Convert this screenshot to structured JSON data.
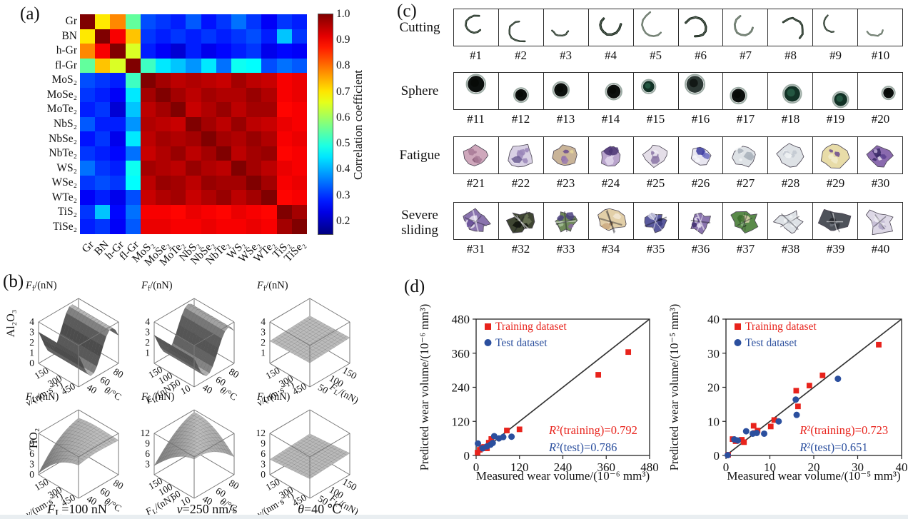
{
  "panels": {
    "a": "(a)",
    "b": "(b)",
    "c": "(c)",
    "d": "(d)"
  },
  "colors": {
    "training": "#e8231c",
    "test": "#2b4f9e",
    "identity_line": "#333333",
    "box": "#222222",
    "surface_edge": "#777777"
  },
  "chart_data": [
    {
      "type": "heatmap",
      "panel": "a",
      "labels": [
        "Gr",
        "BN",
        "h-Gr",
        "fl-Gr",
        "MoS₂",
        "MoSe₂",
        "MoTe₂",
        "NbS₂",
        "NbSe₂",
        "NbTe₂",
        "WS₂",
        "WSe₂",
        "WTe₂",
        "TiS₂",
        "TiSe₂"
      ],
      "matrix": [
        [
          1.0,
          0.7,
          0.78,
          0.55,
          0.32,
          0.3,
          0.28,
          0.33,
          0.27,
          0.3,
          0.35,
          0.3,
          0.25,
          0.3,
          0.28
        ],
        [
          0.7,
          1.0,
          0.9,
          0.73,
          0.3,
          0.28,
          0.3,
          0.28,
          0.3,
          0.28,
          0.3,
          0.32,
          0.28,
          0.42,
          0.3
        ],
        [
          0.78,
          0.9,
          1.0,
          0.65,
          0.28,
          0.25,
          0.22,
          0.28,
          0.24,
          0.26,
          0.28,
          0.3,
          0.24,
          0.26,
          0.25
        ],
        [
          0.55,
          0.73,
          0.65,
          1.0,
          0.52,
          0.45,
          0.42,
          0.38,
          0.45,
          0.35,
          0.48,
          0.47,
          0.32,
          0.35,
          0.33
        ],
        [
          0.32,
          0.3,
          0.28,
          0.52,
          1.0,
          0.97,
          0.95,
          0.96,
          0.95,
          0.94,
          0.97,
          0.95,
          0.94,
          0.9,
          0.91
        ],
        [
          0.3,
          0.28,
          0.25,
          0.45,
          0.97,
          1.0,
          0.97,
          0.95,
          0.97,
          0.96,
          0.96,
          0.98,
          0.96,
          0.9,
          0.91
        ],
        [
          0.28,
          0.3,
          0.22,
          0.42,
          0.95,
          0.97,
          1.0,
          0.94,
          0.96,
          0.98,
          0.95,
          0.97,
          0.97,
          0.89,
          0.9
        ],
        [
          0.33,
          0.28,
          0.28,
          0.38,
          0.96,
          0.95,
          0.94,
          1.0,
          0.97,
          0.95,
          0.98,
          0.95,
          0.94,
          0.91,
          0.9
        ],
        [
          0.27,
          0.3,
          0.24,
          0.45,
          0.95,
          0.97,
          0.96,
          0.97,
          1.0,
          0.97,
          0.96,
          0.98,
          0.96,
          0.9,
          0.91
        ],
        [
          0.3,
          0.28,
          0.26,
          0.35,
          0.94,
          0.96,
          0.98,
          0.95,
          0.97,
          1.0,
          0.95,
          0.97,
          0.98,
          0.89,
          0.9
        ],
        [
          0.35,
          0.3,
          0.28,
          0.48,
          0.97,
          0.96,
          0.95,
          0.98,
          0.96,
          0.95,
          1.0,
          0.97,
          0.95,
          0.91,
          0.9
        ],
        [
          0.3,
          0.32,
          0.3,
          0.47,
          0.95,
          0.98,
          0.97,
          0.95,
          0.98,
          0.97,
          0.97,
          1.0,
          0.97,
          0.9,
          0.91
        ],
        [
          0.25,
          0.28,
          0.24,
          0.32,
          0.94,
          0.96,
          0.97,
          0.94,
          0.96,
          0.98,
          0.95,
          0.97,
          1.0,
          0.89,
          0.9
        ],
        [
          0.3,
          0.42,
          0.26,
          0.35,
          0.9,
          0.9,
          0.89,
          0.91,
          0.9,
          0.89,
          0.91,
          0.9,
          0.89,
          1.0,
          0.97
        ],
        [
          0.28,
          0.3,
          0.25,
          0.33,
          0.91,
          0.91,
          0.9,
          0.9,
          0.91,
          0.9,
          0.9,
          0.91,
          0.9,
          0.97,
          1.0
        ]
      ],
      "colorbar": {
        "label": "Correlation coefficient",
        "ticks": [
          "1.0",
          "0.9",
          "0.8",
          "0.7",
          "0.6",
          "0.5",
          "0.4",
          "0.3",
          "0.2"
        ],
        "vmin": 0.15,
        "vmax": 1.0
      }
    },
    {
      "type": "surface-grid",
      "panel": "b",
      "row_labels": [
        "Al₂O₃",
        "TiO₂"
      ],
      "captions": [
        "F_L=100 nN",
        "v=250 nm/s",
        "θ=40 ℃"
      ],
      "plots": [
        {
          "zlabel": "F_f/(nN)",
          "zmax": 4,
          "zticks": [
            "4",
            "3",
            "2",
            "1",
            "0"
          ],
          "left": {
            "label": "v/(nm·s⁻¹)",
            "ticks": [
              "150",
              "300",
              "450"
            ]
          },
          "right": {
            "label": "θ/°C",
            "ticks": [
              "40",
              "60",
              "80"
            ]
          },
          "shape": "wave1"
        },
        {
          "zlabel": "F_f/(nN)",
          "zmax": 4,
          "zticks": [
            "4",
            "3",
            "2",
            "1"
          ],
          "left": {
            "label": "F_L/(nN)",
            "ticks": [
              "150",
              "100",
              "50",
              "10"
            ]
          },
          "right": {
            "label": "θ/°C",
            "ticks": [
              "40",
              "60",
              "80"
            ]
          },
          "shape": "wave2"
        },
        {
          "zlabel": "F_f/(nN)",
          "zmax": 4,
          "zticks": [
            "4",
            "3",
            "2",
            "1"
          ],
          "left": {
            "label": "v/(nm·s⁻¹)",
            "ticks": [
              "150",
              "300",
              "450"
            ]
          },
          "right": {
            "label": "F_L/(nN)",
            "ticks": [
              "50",
              "100",
              "150"
            ]
          },
          "shape": "plane1"
        },
        {
          "zlabel": "F_L/(nN)",
          "zmax": 12,
          "zticks": [
            "9",
            "6",
            "3",
            "0"
          ],
          "left": {
            "label": "v/(nm·s⁻¹)",
            "ticks": [
              "150",
              "300",
              "450"
            ]
          },
          "right": {
            "label": "θ/°C",
            "ticks": [
              "40",
              "60",
              "80"
            ]
          },
          "shape": "dome1"
        },
        {
          "zlabel": "F_L/(nN)",
          "zmax": 12,
          "zticks": [
            "12",
            "9",
            "6",
            "3"
          ],
          "left": {
            "label": "F_L/(nN)",
            "ticks": [
              "150",
              "100",
              "50",
              "10"
            ]
          },
          "right": {
            "label": "θ/°C",
            "ticks": [
              "40",
              "60",
              "80"
            ]
          },
          "shape": "dome2"
        },
        {
          "zlabel": "F_L/(nN)",
          "zmax": 12,
          "zticks": [
            "12",
            "9",
            "6",
            "3",
            "0"
          ],
          "left": {
            "label": "v/(nm·s⁻¹)",
            "ticks": [
              "150",
              "300",
              "450"
            ]
          },
          "right": {
            "label": "F_L/(nN)",
            "ticks": [
              "50",
              "100",
              "150"
            ]
          },
          "shape": "plane2"
        }
      ]
    },
    {
      "type": "image-grid",
      "panel": "c",
      "rows": [
        {
          "label": "Cutting",
          "kind": "cutting",
          "ids": [
            "#1",
            "#2",
            "#3",
            "#4",
            "#5",
            "#6",
            "#7",
            "#8",
            "#9",
            "#10"
          ],
          "tones": [
            "dark",
            "dark",
            "dark",
            "dark",
            "gray",
            "dark",
            "gray",
            "dark",
            "dark",
            "gray"
          ]
        },
        {
          "label": "Sphere",
          "kind": "sphere",
          "ids": [
            "#11",
            "#12",
            "#13",
            "#14",
            "#15",
            "#16",
            "#17",
            "#18",
            "#19",
            "#20"
          ],
          "tones": [
            "black",
            "black",
            "black",
            "black",
            "green",
            "gray",
            "black",
            "green",
            "green",
            "black"
          ]
        },
        {
          "label": "Fatigue",
          "kind": "fatigue",
          "ids": [
            "#21",
            "#22",
            "#23",
            "#24",
            "#25",
            "#26",
            "#27",
            "#28",
            "#29",
            "#30"
          ],
          "tones": [
            "mauve",
            "lavender",
            "purple-yellow",
            "purple",
            "pale-purple",
            "blue-violet",
            "pale-gray",
            "pale-gray",
            "yellow-purple",
            "violet"
          ]
        },
        {
          "label": "Severe sliding",
          "kind": "severe",
          "ids": [
            "#31",
            "#32",
            "#33",
            "#34",
            "#35",
            "#36",
            "#37",
            "#38",
            "#39",
            "#40"
          ],
          "tones": [
            "purple-white",
            "dark-olive",
            "green-purple",
            "tan",
            "blue-purple",
            "purple-white",
            "green",
            "pale-gray",
            "dark-gray",
            "pale-lavender"
          ]
        }
      ]
    },
    {
      "type": "scatter",
      "panel": "d1",
      "xlabel": "Measured wear volume/(10⁻⁶ mm³)",
      "ylabel": "Predicted wear volume/(10⁻⁶ mm³)",
      "xlim": [
        0,
        480
      ],
      "ylim": [
        0,
        480
      ],
      "xticks": [
        0,
        120,
        240,
        360,
        480
      ],
      "yticks": [
        0,
        120,
        240,
        360,
        480
      ],
      "legend": [
        "Training dataset",
        "Test dataset"
      ],
      "annotations": [
        "R²(training)=0.792",
        "R²(test)=0.786"
      ],
      "identity_line": [
        [
          0,
          0
        ],
        [
          480,
          480
        ]
      ],
      "series": [
        {
          "name": "Training dataset",
          "marker": "square",
          "color": "#e8231c",
          "points": [
            [
              4,
              10
            ],
            [
              10,
              20
            ],
            [
              15,
              28
            ],
            [
              22,
              30
            ],
            [
              30,
              25
            ],
            [
              35,
              45
            ],
            [
              42,
              58
            ],
            [
              85,
              88
            ],
            [
              120,
              92
            ],
            [
              338,
              284
            ],
            [
              421,
              364
            ]
          ]
        },
        {
          "name": "Test dataset",
          "marker": "circle",
          "color": "#2b4f9e",
          "points": [
            [
              5,
              42
            ],
            [
              18,
              25
            ],
            [
              30,
              32
            ],
            [
              40,
              38
            ],
            [
              46,
              44
            ],
            [
              50,
              68
            ],
            [
              63,
              60
            ],
            [
              75,
              65
            ],
            [
              98,
              66
            ]
          ]
        }
      ]
    },
    {
      "type": "scatter",
      "panel": "d2",
      "xlabel": "Measured wear volume/(10⁻⁵ mm³)",
      "ylabel": "Predicted wear volume/(10⁻⁵ mm³)",
      "xlim": [
        0,
        40
      ],
      "ylim": [
        0,
        40
      ],
      "xticks": [
        0,
        10,
        20,
        30,
        40
      ],
      "yticks": [
        0,
        10,
        20,
        30,
        40
      ],
      "legend": [
        "Training dataset",
        "Test dataset"
      ],
      "annotations": [
        "R²(training)=0.723",
        "R²(test)=0.651"
      ],
      "identity_line": [
        [
          0,
          0
        ],
        [
          40,
          40
        ]
      ],
      "series": [
        {
          "name": "Training dataset",
          "marker": "square",
          "color": "#e8231c",
          "points": [
            [
              0.5,
              0.2
            ],
            [
              1.5,
              4.8
            ],
            [
              2.2,
              4.2
            ],
            [
              3.6,
              4.6
            ],
            [
              4.1,
              3.9
            ],
            [
              6.3,
              8.7
            ],
            [
              6.6,
              6.6
            ],
            [
              7.2,
              7.3
            ],
            [
              10.2,
              8.5
            ],
            [
              11,
              10.4
            ],
            [
              16,
              19
            ],
            [
              16.4,
              14.4
            ],
            [
              19,
              20.5
            ],
            [
              22,
              23.5
            ],
            [
              34.8,
              32.5
            ]
          ]
        },
        {
          "name": "Test dataset",
          "marker": "circle",
          "color": "#2b4f9e",
          "points": [
            [
              0.4,
              0.1
            ],
            [
              1.9,
              4.7
            ],
            [
              2.7,
              4.4
            ],
            [
              4.6,
              7.1
            ],
            [
              6.1,
              6.4
            ],
            [
              7,
              6.6
            ],
            [
              8.7,
              6.4
            ],
            [
              12,
              10
            ],
            [
              15.9,
              16.4
            ],
            [
              16.1,
              11.9
            ],
            [
              25.5,
              22.5
            ]
          ]
        }
      ]
    }
  ]
}
